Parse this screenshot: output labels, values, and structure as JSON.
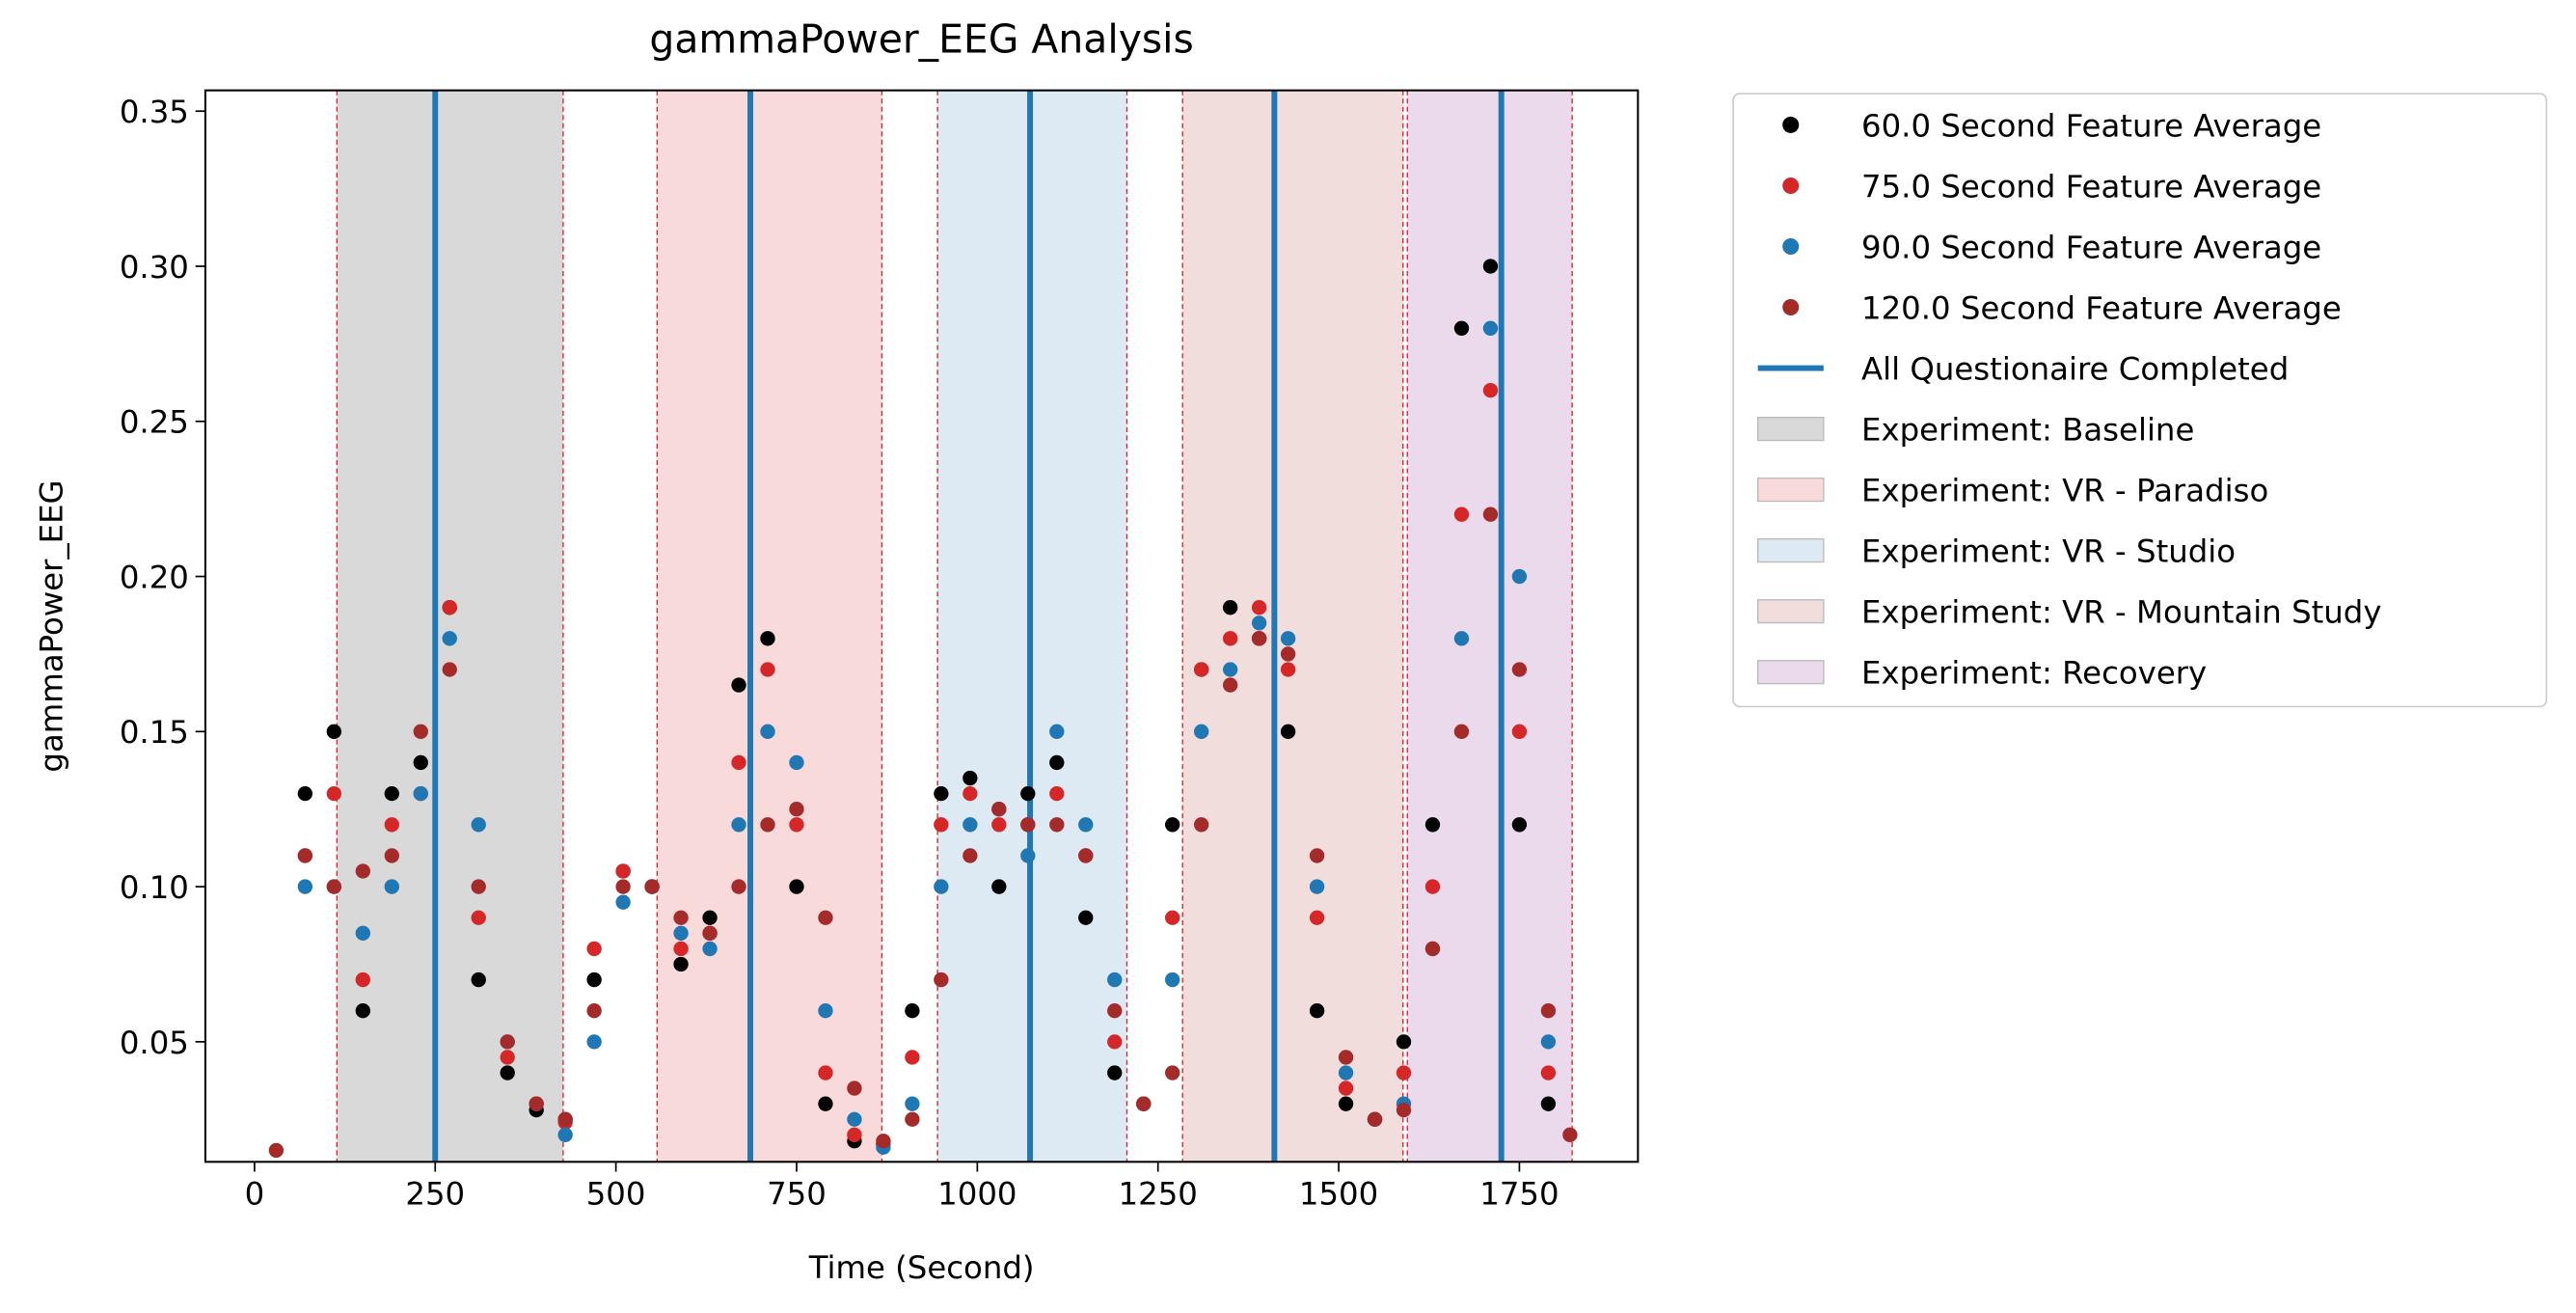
{
  "chart_data": {
    "type": "scatter",
    "title": "gammaPower_EEG Analysis",
    "x_label": "Time (Second)",
    "y_label": "gammaPower_EEG",
    "xlim": [
      -68,
      1914
    ],
    "ylim": [
      0.0113,
      0.3567
    ],
    "xticks": [
      0,
      250,
      500,
      750,
      1000,
      1250,
      1500,
      1750
    ],
    "yticks": [
      0.05,
      {
        "value": 0.1,
        "label": "0.10"
      },
      0.15,
      {
        "value": 0.2,
        "label": "0.20"
      },
      0.25,
      {
        "value": 0.3,
        "label": "0.30"
      },
      0.35
    ],
    "legend": "outside right",
    "series": [
      {
        "name": "60.0 Second Feature Average",
        "color": "#000000",
        "x": [
          70,
          110,
          150,
          190,
          230,
          270,
          310,
          350,
          390,
          430,
          470,
          510,
          550,
          590,
          630,
          670,
          710,
          750,
          790,
          830,
          870,
          910,
          950,
          990,
          1030,
          1070,
          1110,
          1150,
          1190,
          1230,
          1270,
          1310,
          1350,
          1390,
          1430,
          1470,
          1510,
          1550,
          1590,
          1630,
          1670,
          1710,
          1750,
          1790
        ],
        "values": [
          0.13,
          0.15,
          0.06,
          0.13,
          0.14,
          0.19,
          0.07,
          0.04,
          0.028,
          0.025,
          0.07,
          0.105,
          0.1,
          0.075,
          0.09,
          0.165,
          0.18,
          0.1,
          0.03,
          0.018,
          0.017,
          0.06,
          0.13,
          0.135,
          0.1,
          0.13,
          0.14,
          0.09,
          0.04,
          0.03,
          0.12,
          0.17,
          0.19,
          0.18,
          0.15,
          0.06,
          0.03,
          0.025,
          0.05,
          0.12,
          0.28,
          0.3,
          0.12,
          0.03
        ]
      },
      {
        "name": "75.0 Second Feature Average",
        "color": "#d62728",
        "x": [
          70,
          110,
          150,
          190,
          230,
          270,
          310,
          350,
          390,
          430,
          470,
          510,
          550,
          590,
          630,
          670,
          710,
          750,
          790,
          830,
          870,
          910,
          950,
          990,
          1030,
          1070,
          1110,
          1150,
          1190,
          1230,
          1270,
          1310,
          1350,
          1390,
          1430,
          1470,
          1510,
          1550,
          1590,
          1630,
          1670,
          1710,
          1750,
          1790
        ],
        "values": [
          0.11,
          0.13,
          0.07,
          0.12,
          0.13,
          0.19,
          0.09,
          0.045,
          0.03,
          0.024,
          0.08,
          0.105,
          0.1,
          0.08,
          0.085,
          0.14,
          0.17,
          0.12,
          0.04,
          0.02,
          0.017,
          0.045,
          0.12,
          0.13,
          0.12,
          0.12,
          0.13,
          0.11,
          0.05,
          0.03,
          0.09,
          0.17,
          0.18,
          0.19,
          0.17,
          0.09,
          0.035,
          0.025,
          0.04,
          0.1,
          0.22,
          0.26,
          0.15,
          0.04
        ]
      },
      {
        "name": "90.0 Second Feature Average",
        "color": "#1f77b4",
        "x": [
          70,
          110,
          150,
          190,
          230,
          270,
          310,
          350,
          390,
          430,
          470,
          510,
          550,
          590,
          630,
          670,
          710,
          750,
          790,
          830,
          870,
          910,
          950,
          990,
          1030,
          1070,
          1110,
          1150,
          1190,
          1230,
          1270,
          1310,
          1350,
          1390,
          1430,
          1470,
          1510,
          1550,
          1590,
          1630,
          1670,
          1710,
          1750,
          1790
        ],
        "values": [
          0.1,
          0.1,
          0.085,
          0.1,
          0.13,
          0.18,
          0.12,
          0.05,
          0.03,
          0.02,
          0.05,
          0.095,
          0.1,
          0.085,
          0.08,
          0.12,
          0.15,
          0.14,
          0.06,
          0.025,
          0.016,
          0.03,
          0.1,
          0.12,
          0.125,
          0.11,
          0.15,
          0.12,
          0.07,
          0.03,
          0.07,
          0.15,
          0.17,
          0.185,
          0.18,
          0.1,
          0.04,
          0.025,
          0.03,
          0.08,
          0.18,
          0.28,
          0.2,
          0.05
        ]
      },
      {
        "name": "120.0 Second Feature Average",
        "color": "#a52a2a",
        "x": [
          30,
          70,
          110,
          150,
          190,
          230,
          270,
          310,
          350,
          390,
          430,
          470,
          510,
          550,
          590,
          630,
          670,
          710,
          750,
          790,
          830,
          870,
          910,
          950,
          990,
          1030,
          1070,
          1110,
          1150,
          1190,
          1230,
          1270,
          1310,
          1350,
          1390,
          1430,
          1470,
          1510,
          1550,
          1590,
          1630,
          1670,
          1710,
          1750,
          1790,
          1820
        ],
        "values": [
          0.015,
          0.11,
          0.1,
          0.105,
          0.11,
          0.15,
          0.17,
          0.1,
          0.05,
          0.03,
          0.025,
          0.06,
          0.1,
          0.1,
          0.09,
          0.085,
          0.1,
          0.12,
          0.125,
          0.09,
          0.035,
          0.018,
          0.025,
          0.07,
          0.11,
          0.125,
          0.12,
          0.12,
          0.11,
          0.06,
          0.03,
          0.04,
          0.12,
          0.165,
          0.18,
          0.175,
          0.11,
          0.045,
          0.025,
          0.028,
          0.08,
          0.15,
          0.22,
          0.17,
          0.06,
          0.02
        ]
      }
    ],
    "vlines": {
      "name": "All Questionaire Completed",
      "color": "#1f77b4",
      "x": [
        250,
        686,
        1073,
        1411,
        1725
      ]
    },
    "spans": [
      {
        "name": "Experiment: Baseline",
        "color": "#d9d9d9",
        "start": 114,
        "end": 427
      },
      {
        "name": "Experiment: VR - Paradiso",
        "color": "#f8dada",
        "start": 557,
        "end": 868
      },
      {
        "name": "Experiment: VR - Studio",
        "color": "#dde9f3",
        "start": 945,
        "end": 1207
      },
      {
        "name": "Experiment: VR - Mountain Study",
        "color": "#f0dddc",
        "start": 1284,
        "end": 1589
      },
      {
        "name": "Experiment: Recovery",
        "color": "#ebdaec",
        "start": 1595,
        "end": 1823
      }
    ]
  }
}
